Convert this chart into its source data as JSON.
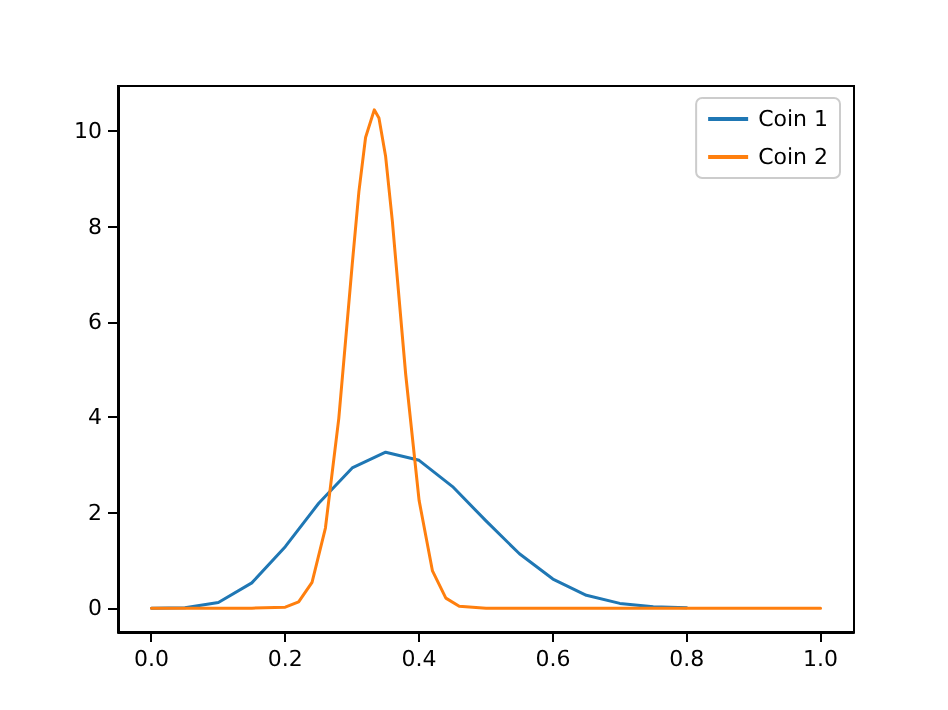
{
  "chart_data": {
    "type": "line",
    "series": [
      {
        "name": "Coin 1",
        "color": "#1f77b4",
        "x": [
          0,
          0.05,
          0.1,
          0.15,
          0.2,
          0.25,
          0.3,
          0.35,
          0.4,
          0.45,
          0.5,
          0.55,
          0.6,
          0.65,
          0.7,
          0.75,
          0.8
        ],
        "values": [
          0,
          0.01,
          0.12,
          0.53,
          1.29,
          2.2,
          2.94,
          3.27,
          3.1,
          2.55,
          1.83,
          1.14,
          0.61,
          0.27,
          0.1,
          0.03,
          0.01
        ]
      },
      {
        "name": "Coin 2",
        "color": "#ff7f0e",
        "x": [
          0,
          0.1,
          0.15,
          0.2,
          0.22,
          0.24,
          0.26,
          0.28,
          0.3,
          0.31,
          0.32,
          0.333,
          0.34,
          0.35,
          0.36,
          0.38,
          0.4,
          0.42,
          0.44,
          0.46,
          0.5,
          0.6,
          0.8,
          1
        ],
        "values": [
          0,
          0,
          0,
          0.02,
          0.13,
          0.54,
          1.68,
          3.98,
          7.2,
          8.73,
          9.87,
          10.45,
          10.28,
          9.47,
          8.12,
          4.9,
          2.26,
          0.78,
          0.21,
          0.04,
          0,
          0,
          0,
          0
        ]
      }
    ],
    "xlim": [
      -0.05,
      1.05
    ],
    "xticks": [
      {
        "value": 0,
        "label": "0.0"
      },
      {
        "value": 0.2,
        "label": "0.2"
      },
      {
        "value": 0.4,
        "label": "0.4"
      },
      {
        "value": 0.6,
        "label": "0.6"
      },
      {
        "value": 0.8,
        "label": "0.8"
      },
      {
        "value": 1,
        "label": "1.0"
      }
    ],
    "ylim": [
      -0.5,
      10.95
    ],
    "yticks": [
      0,
      2,
      4,
      6,
      8,
      10
    ],
    "legend": "top right",
    "marker": "none",
    "line_style": "solid"
  }
}
